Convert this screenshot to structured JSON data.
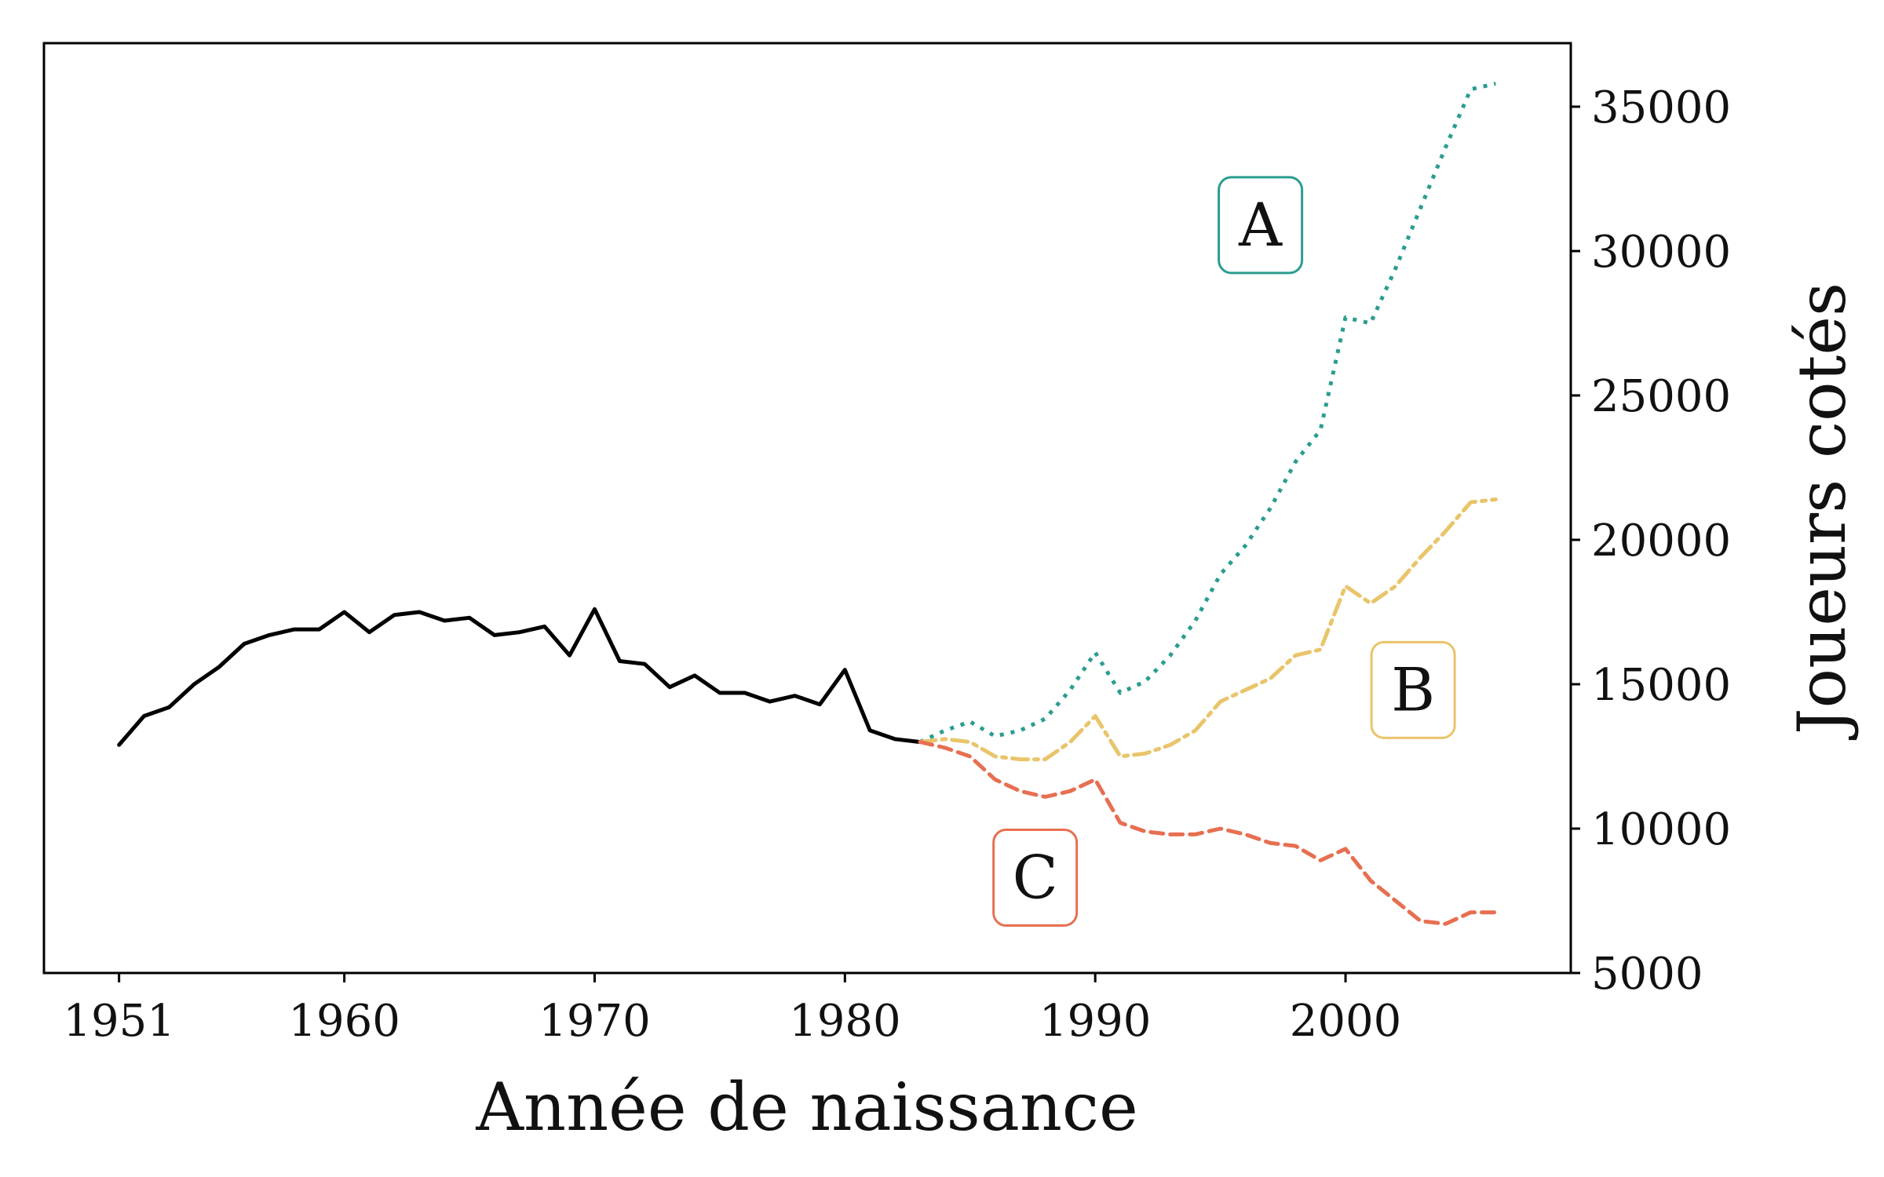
{
  "chart_data": {
    "type": "line",
    "xlabel": "Année de naissance",
    "ylabel": "Joueurs cotés",
    "xlim": [
      1948,
      2009
    ],
    "ylim": [
      5000,
      37200
    ],
    "x_ticks": [
      1951,
      1960,
      1970,
      1980,
      1990,
      2000
    ],
    "y_ticks": [
      5000,
      10000,
      15000,
      20000,
      25000,
      30000,
      35000
    ],
    "y_axis_side": "right",
    "grid": false,
    "series": [
      {
        "color": "#000000",
        "style": "solid",
        "x": [
          1951,
          1952,
          1953,
          1954,
          1955,
          1956,
          1957,
          1958,
          1959,
          1960,
          1961,
          1962,
          1963,
          1964,
          1965,
          1966,
          1967,
          1968,
          1969,
          1970,
          1971,
          1972,
          1973,
          1974,
          1975,
          1976,
          1977,
          1978,
          1979,
          1980,
          1981,
          1982,
          1983
        ],
        "y": [
          12900,
          13900,
          14200,
          15000,
          15600,
          16400,
          16700,
          16900,
          16900,
          17500,
          16800,
          17400,
          17500,
          17200,
          17300,
          16700,
          16800,
          17000,
          16000,
          17600,
          15800,
          15700,
          14900,
          15300,
          14700,
          14700,
          14400,
          14600,
          14300,
          15500,
          13400,
          13100,
          13000
        ]
      },
      {
        "color": "#2a9d8f",
        "style": "dotted",
        "x": [
          1983,
          1984,
          1985,
          1986,
          1987,
          1988,
          1989,
          1990,
          1991,
          1992,
          1993,
          1994,
          1995,
          1996,
          1997,
          1998,
          1999,
          2000,
          2001,
          2002,
          2003,
          2004,
          2005,
          2006
        ],
        "y": [
          13000,
          13400,
          13700,
          13200,
          13400,
          13800,
          14800,
          16100,
          14700,
          15100,
          16000,
          17200,
          18800,
          19800,
          21100,
          22700,
          23800,
          27700,
          27500,
          29400,
          31500,
          33600,
          35600,
          35800
        ]
      },
      {
        "color": "#e9c46a",
        "style": "dashdot",
        "x": [
          1983,
          1984,
          1985,
          1986,
          1987,
          1988,
          1989,
          1990,
          1991,
          1992,
          1993,
          1994,
          1995,
          1996,
          1997,
          1998,
          1999,
          2000,
          2001,
          2002,
          2003,
          2004,
          2005,
          2006
        ],
        "y": [
          13000,
          13100,
          13000,
          12500,
          12400,
          12400,
          13000,
          13900,
          12500,
          12600,
          12900,
          13400,
          14400,
          14800,
          15200,
          16000,
          16200,
          18400,
          17800,
          18400,
          19400,
          20300,
          21300,
          21400
        ]
      },
      {
        "color": "#e76f51",
        "style": "dashed",
        "x": [
          1983,
          1984,
          1985,
          1986,
          1987,
          1988,
          1989,
          1990,
          1991,
          1992,
          1993,
          1994,
          1995,
          1996,
          1997,
          1998,
          1999,
          2000,
          2001,
          2002,
          2003,
          2004,
          2005,
          2006
        ],
        "y": [
          13000,
          12800,
          12500,
          11700,
          11300,
          11100,
          11300,
          11700,
          10200,
          9900,
          9800,
          9800,
          10000,
          9800,
          9500,
          9400,
          8900,
          9300,
          8200,
          7500,
          6800,
          6700,
          7100,
          7100
        ]
      }
    ],
    "annotations": [
      {
        "text": "A",
        "x": 1996.6,
        "y": 30900,
        "color": "#2a9d8f"
      },
      {
        "text": "B",
        "x": 2002.7,
        "y": 14800,
        "color": "#e9c46a"
      },
      {
        "text": "C",
        "x": 1987.6,
        "y": 8300,
        "color": "#e76f51"
      }
    ]
  }
}
